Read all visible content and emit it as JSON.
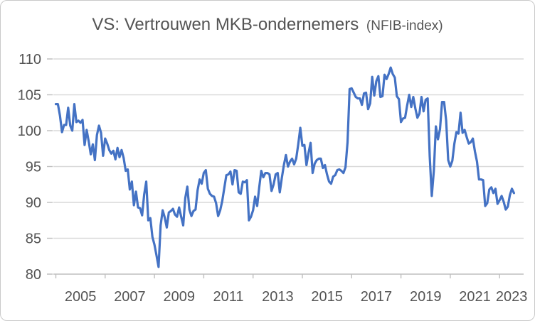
{
  "title": {
    "main": "VS: Vertrouwen MKB-ondernemers",
    "suffix": "(NFIB-index)"
  },
  "colors": {
    "line": "#4472C4",
    "gridline": "#D9D9D9",
    "axis": "#BFBFBF",
    "text": "#545454",
    "border": "#C9C9C9"
  },
  "chart_data": {
    "type": "line",
    "title": "VS: Vertrouwen MKB-ondernemers (NFIB-index)",
    "xlabel": "",
    "ylabel": "",
    "x_unit": "month",
    "x_start": "2005-01",
    "x_end": "2023-08",
    "ylim": [
      80,
      110
    ],
    "y_ticks": [
      80,
      85,
      90,
      95,
      100,
      105,
      110
    ],
    "x_tick_labels": [
      "2005",
      "2007",
      "2009",
      "2011",
      "2013",
      "2015",
      "2017",
      "2019",
      "2021",
      "2023"
    ],
    "x_tick_interval_months": 24,
    "grid": "horizontal",
    "legend": "none",
    "series": [
      {
        "name": "NFIB-index",
        "color": "#4472C4",
        "values": [
          103.7,
          103.7,
          102.1,
          99.8,
          100.8,
          100.8,
          103.2,
          100.7,
          100.0,
          103.7,
          101.2,
          101.4,
          101.1,
          101.5,
          98.0,
          100.1,
          98.5,
          96.7,
          98.1,
          95.9,
          99.4,
          100.7,
          99.7,
          96.5,
          98.9,
          98.2,
          97.3,
          96.8,
          97.2,
          96.0,
          97.6,
          96.3,
          97.3,
          96.2,
          94.4,
          94.6,
          91.8,
          92.9,
          89.6,
          91.5,
          89.3,
          89.2,
          88.2,
          91.1,
          92.9,
          87.5,
          87.8,
          85.2,
          84.1,
          82.6,
          81.0,
          86.8,
          88.9,
          87.9,
          86.5,
          88.6,
          88.8,
          89.1,
          88.3,
          88.0,
          89.3,
          88.0,
          86.8,
          90.6,
          92.2,
          89.0,
          88.1,
          88.8,
          89.0,
          91.7,
          93.2,
          92.6,
          94.1,
          94.5,
          91.9,
          91.2,
          90.9,
          90.8,
          89.9,
          88.1,
          88.9,
          90.2,
          92.0,
          93.8,
          93.9,
          94.3,
          92.5,
          94.5,
          94.4,
          91.4,
          91.2,
          92.9,
          92.8,
          93.1,
          87.5,
          88.0,
          88.9,
          90.8,
          89.5,
          92.1,
          94.4,
          93.5,
          94.1,
          94.1,
          93.9,
          91.6,
          92.5,
          93.9,
          94.1,
          91.4,
          93.4,
          95.2,
          96.6,
          95.0,
          95.7,
          96.1,
          95.3,
          96.1,
          98.1,
          100.4,
          97.9,
          98.0,
          95.2,
          96.9,
          98.3,
          94.1,
          95.4,
          95.9,
          96.1,
          96.1,
          94.8,
          95.2,
          93.9,
          92.9,
          92.6,
          93.6,
          93.8,
          94.5,
          94.6,
          94.4,
          94.1,
          94.9,
          98.4,
          105.8,
          105.9,
          105.3,
          104.7,
          104.5,
          104.5,
          103.6,
          105.2,
          105.3,
          103.0,
          103.8,
          107.5,
          104.9,
          106.9,
          107.6,
          104.7,
          104.8,
          107.8,
          107.2,
          107.9,
          108.8,
          107.9,
          107.4,
          104.8,
          104.4,
          101.2,
          101.7,
          101.8,
          103.5,
          105.0,
          103.3,
          104.7,
          103.1,
          101.8,
          102.4,
          104.7,
          102.7,
          104.3,
          104.5,
          96.4,
          90.9,
          94.4,
          100.6,
          98.8,
          100.2,
          104.0,
          104.0,
          101.4,
          95.9,
          95.0,
          95.8,
          98.2,
          99.8,
          99.6,
          102.5,
          99.7,
          100.1,
          99.1,
          98.2,
          98.4,
          98.9,
          97.1,
          95.7,
          93.2,
          93.2,
          93.1,
          89.5,
          89.9,
          91.8,
          92.1,
          91.3,
          91.9,
          89.8,
          90.3,
          90.9,
          90.1,
          89.0,
          89.4,
          91.0,
          91.9,
          91.3
        ]
      }
    ]
  }
}
